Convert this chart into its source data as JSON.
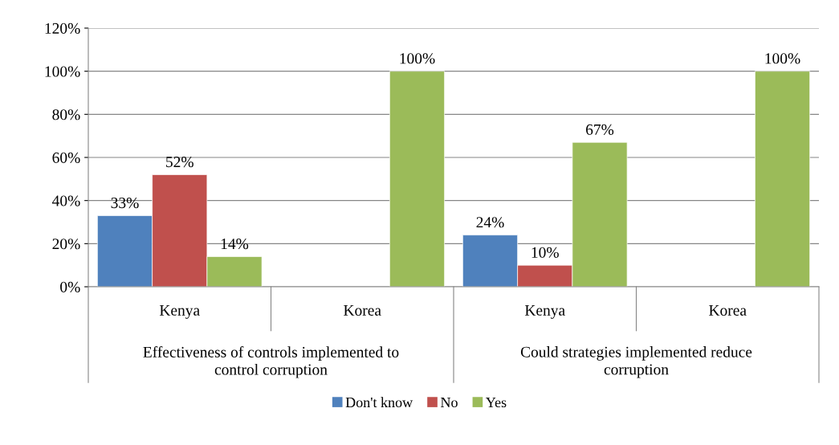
{
  "chart_data": {
    "type": "bar",
    "categories": [
      "Kenya",
      "Korea",
      "Kenya",
      "Korea"
    ],
    "series": [
      {
        "name": "Don't know",
        "color": "#4f81bd",
        "values": [
          33,
          null,
          24,
          null
        ],
        "value_labels": [
          "33%",
          null,
          "24%",
          null
        ]
      },
      {
        "name": "No",
        "color": "#c0504d",
        "values": [
          52,
          null,
          10,
          null
        ],
        "value_labels": [
          "52%",
          null,
          "10%",
          null
        ]
      },
      {
        "name": "Yes",
        "color": "#9bbb59",
        "values": [
          14,
          100,
          67,
          100
        ],
        "value_labels": [
          "14%",
          "100%",
          "67%",
          "100%"
        ]
      }
    ],
    "annotations": [
      "Effectiveness of controls implemented to\ncontrol corruption",
      "Could strategies implemented reduce\ncorruption"
    ],
    "ylim": [
      0,
      120
    ],
    "yticks": [
      {
        "value": 0,
        "label": "0%"
      },
      {
        "value": 20,
        "label": "20%"
      },
      {
        "value": 40,
        "label": "40%"
      },
      {
        "value": 60,
        "label": "60%"
      },
      {
        "value": 80,
        "label": "80%"
      },
      {
        "value": 100,
        "label": "100%"
      },
      {
        "value": 120,
        "label": "120%"
      }
    ],
    "grid": "y",
    "legend": "bottom"
  }
}
